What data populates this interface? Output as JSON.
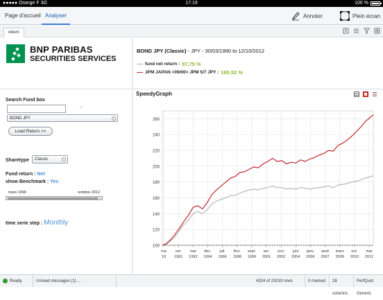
{
  "status_bar": {
    "carrier": "Orange F",
    "network": "3G",
    "time": "17:19",
    "battery": "100 %"
  },
  "header": {
    "tabs": [
      {
        "label": "Page d'accueil"
      },
      {
        "label": "Analyser"
      }
    ],
    "annoter_label": "Annoter",
    "plein_ecran_label": "Plein écran"
  },
  "toolbar": {
    "tab_label": "return"
  },
  "logo": {
    "line1": "BNP PARIBAS",
    "line2": "SECURITIES SERVICES"
  },
  "left": {
    "search_label": "Search Fund box",
    "search_value": "",
    "search_hint": "u",
    "fund_select": "BOND JPY",
    "load_button": "Load Return >>",
    "sharetype_label": "Sharetype",
    "sharetype_value": "Classic",
    "fund_return_label": "Fund return :",
    "fund_return_value": "Net",
    "benchmark_label": "show Benchmark :",
    "benchmark_value": "Yes",
    "slider_start": "mars 1990",
    "slider_end": "octobre 2012",
    "slider_fill": 0.97,
    "series_step_label": "time serie step :",
    "series_step_value": "Monthly"
  },
  "info": {
    "fund_name": "BOND JPY (Classic)",
    "separator": "-",
    "currency": "JPY",
    "date_range": "- 30/03/1990 to 12/10/2012",
    "legend": [
      {
        "label": "fund net return :",
        "value": "87,79 %",
        "color": "#aaaaaa"
      },
      {
        "label": "JPM JAPAN >09/00> JPM 5/7 JPY :",
        "value": "165,52 %",
        "color": "#c0272d"
      }
    ]
  },
  "graph": {
    "title": "SpeedyGraph"
  },
  "chart_data": {
    "type": "line",
    "ylim": [
      100,
      270
    ],
    "yticks": [
      100,
      120,
      140,
      160,
      180,
      200,
      220,
      240,
      260
    ],
    "xtick_labels": [
      [
        "ma",
        "19"
      ],
      [
        "oct.",
        "1991"
      ],
      [
        "mai",
        "1993"
      ],
      [
        "déc.",
        "1994"
      ],
      [
        "juil.",
        "1996"
      ],
      [
        "févr.",
        "1998"
      ],
      [
        "sept.",
        "1999"
      ],
      [
        "avr.",
        "2001"
      ],
      [
        "nov.",
        "2002"
      ],
      [
        "juin",
        "2004"
      ],
      [
        "janv.",
        "2006"
      ],
      [
        "août",
        "2007"
      ],
      [
        "mars",
        "2009"
      ],
      [
        "oct.",
        "2010"
      ],
      [
        "mai",
        "2012"
      ]
    ],
    "x": [
      1990.2,
      1990.6,
      1991.0,
      1991.5,
      1992.0,
      1992.5,
      1993.0,
      1993.5,
      1994.0,
      1994.5,
      1995.0,
      1995.5,
      1996.0,
      1996.5,
      1997.0,
      1997.5,
      1998.0,
      1998.5,
      1999.0,
      1999.5,
      2000.0,
      2000.5,
      2001.0,
      2001.5,
      2002.0,
      2002.5,
      2003.0,
      2003.5,
      2004.0,
      2004.5,
      2005.0,
      2005.5,
      2006.0,
      2006.5,
      2007.0,
      2007.5,
      2008.0,
      2008.5,
      2009.0,
      2009.5,
      2010.0,
      2010.5,
      2011.0,
      2011.5,
      2012.0,
      2012.8
    ],
    "series": [
      {
        "name": "fund net return",
        "color": "#aaaaaa",
        "values": [
          100,
          101,
          105,
          110,
          118,
          126,
          132,
          140,
          143,
          140,
          145,
          152,
          156,
          158,
          160,
          163,
          163,
          166,
          168,
          170,
          171,
          170,
          172,
          173,
          175,
          173,
          173,
          171,
          172,
          171,
          173,
          172,
          171,
          172,
          173,
          174,
          175,
          173,
          176,
          177,
          178,
          180,
          181,
          183,
          185,
          188
        ]
      },
      {
        "name": "JPM JAPAN >09/00> JPM 5/7 JPY",
        "color": "#c0272d",
        "values": [
          100,
          102,
          106,
          113,
          121,
          130,
          138,
          148,
          150,
          146,
          154,
          164,
          170,
          175,
          180,
          185,
          187,
          192,
          193,
          196,
          199,
          198,
          203,
          206,
          210,
          206,
          207,
          203,
          205,
          204,
          208,
          206,
          209,
          211,
          214,
          216,
          220,
          219,
          226,
          229,
          233,
          238,
          244,
          250,
          257,
          265
        ]
      }
    ]
  },
  "footer": {
    "ready": "Ready.",
    "unread": "Unread messages (1) ...",
    "rows": "4324 of 23019 rows",
    "marked": "0 marked",
    "columns": "28 columns",
    "user": "PerfQuot Generic"
  }
}
